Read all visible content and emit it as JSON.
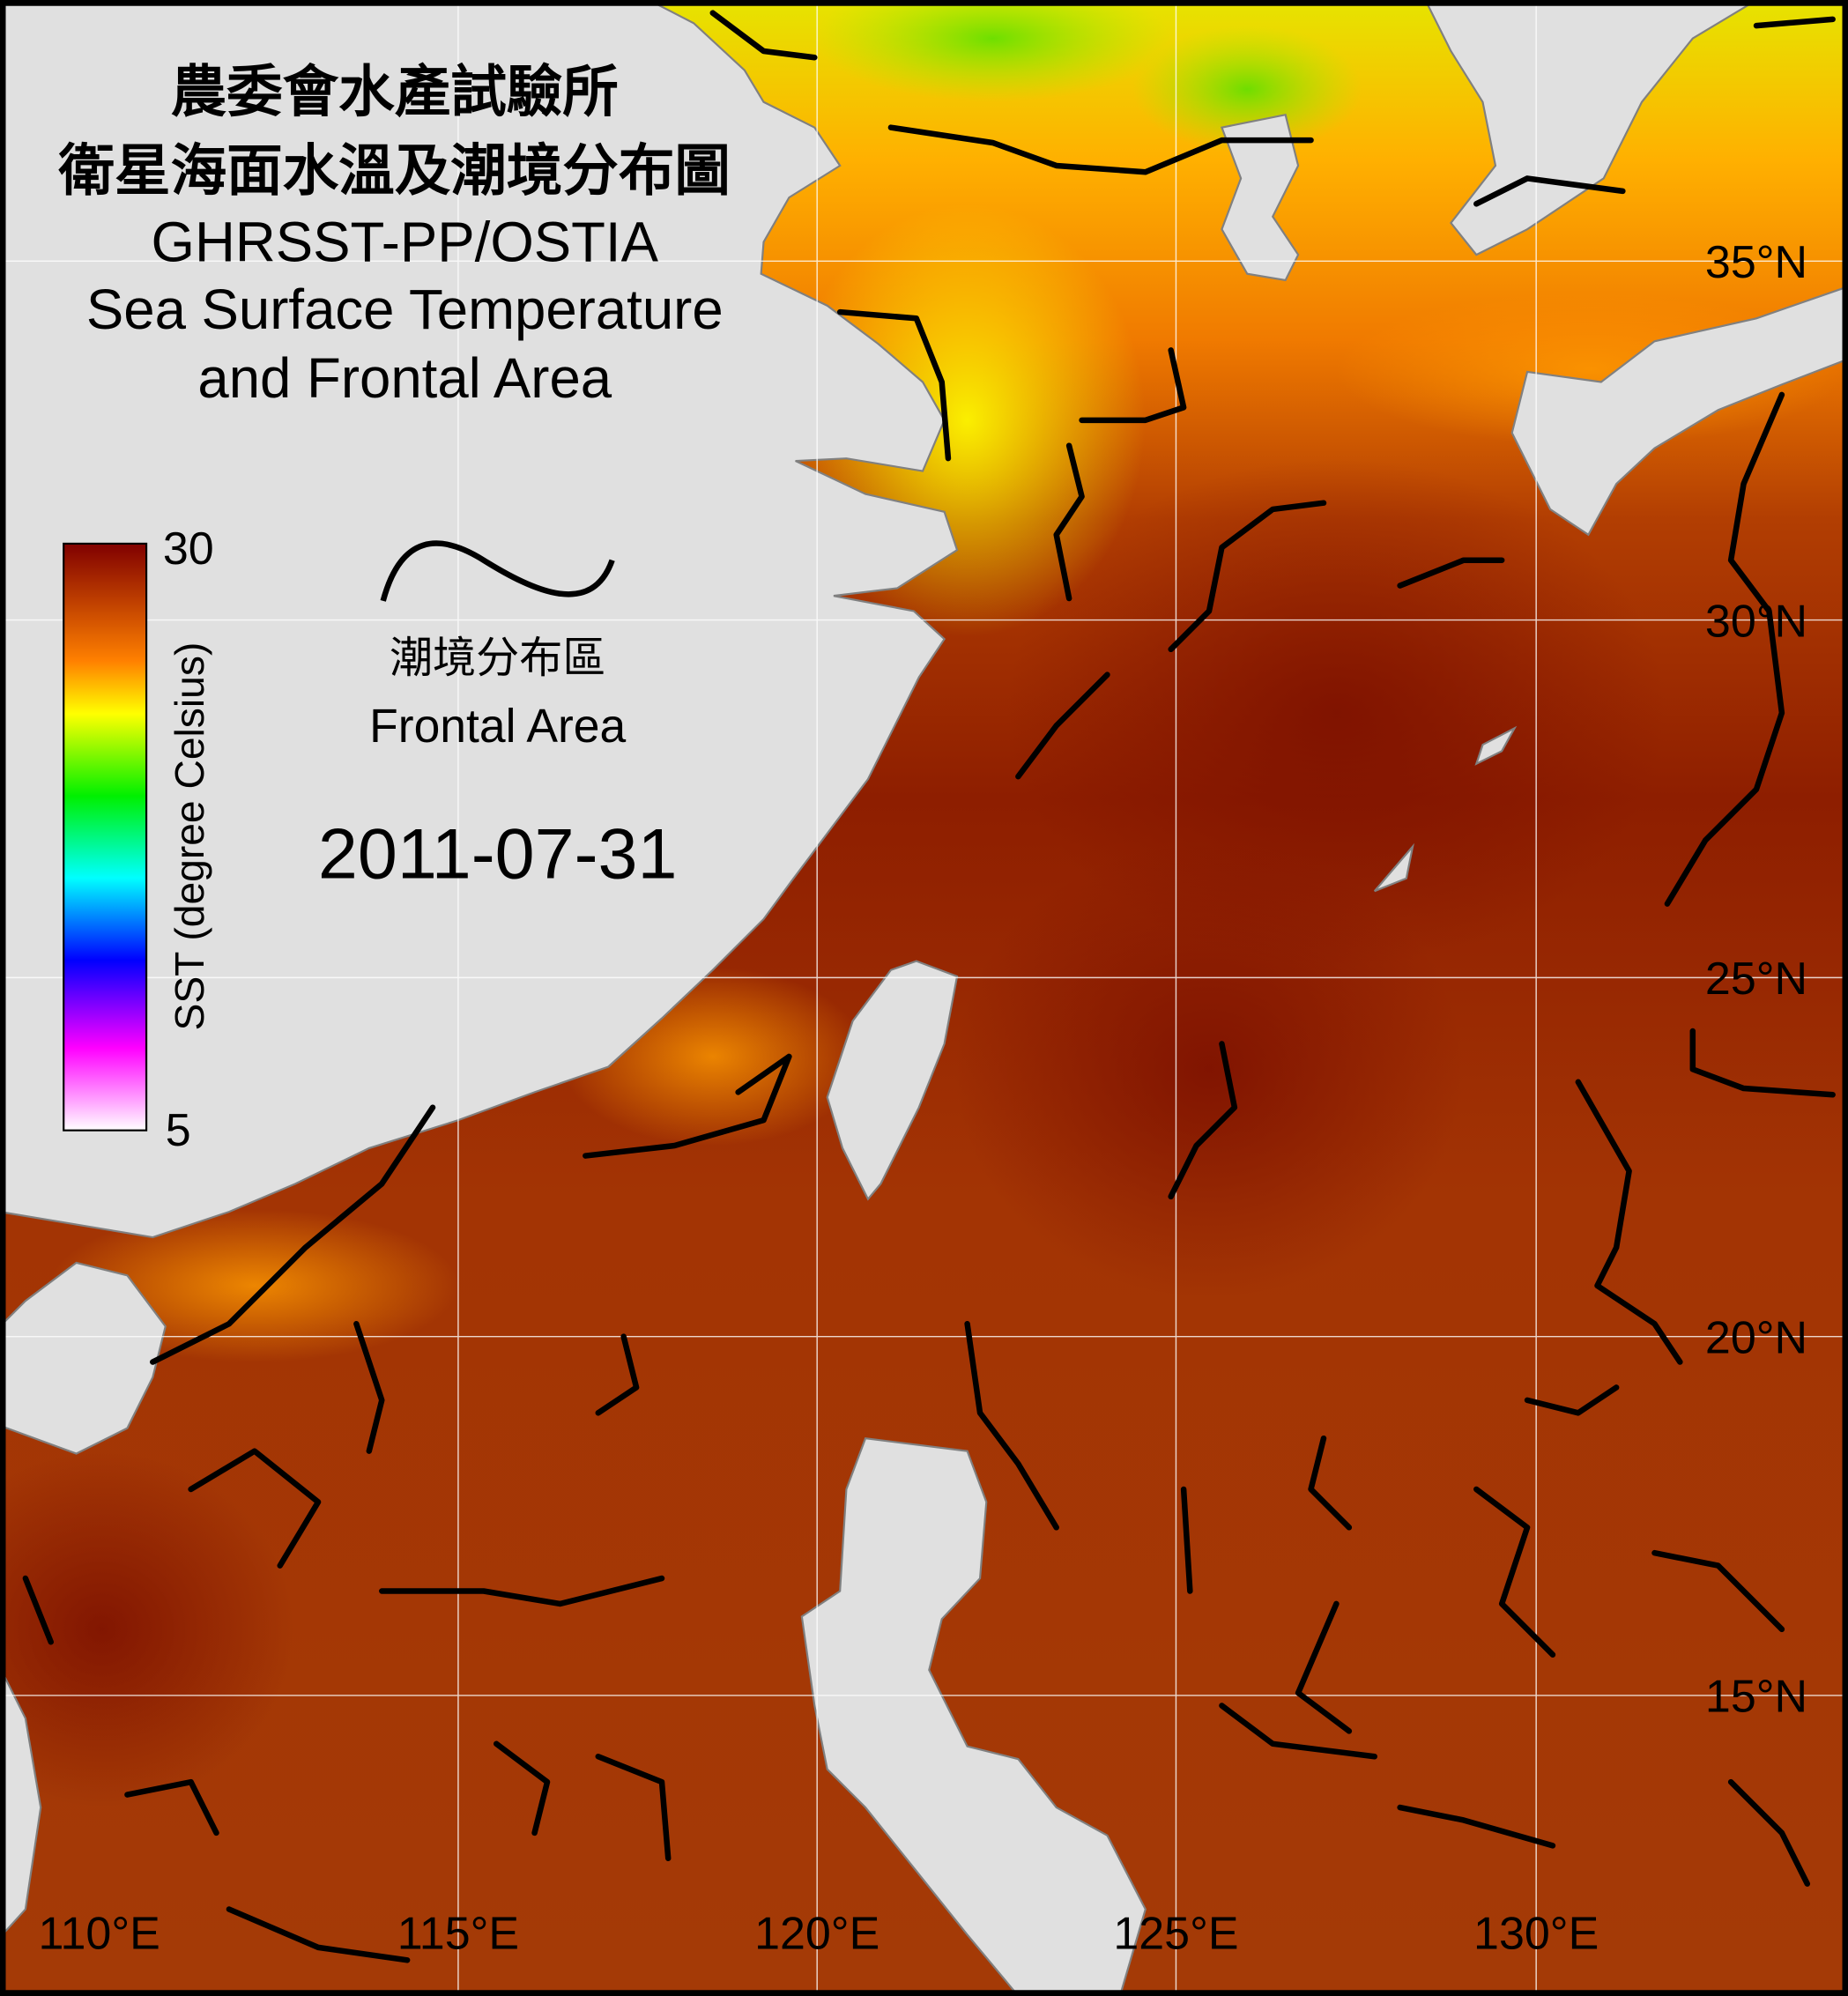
{
  "title": {
    "line1": "農委會水產試驗所",
    "line2": "衛星海面水溫及潮境分布圖",
    "line3": "GHRSST-PP/OSTIA",
    "line4": "Sea Surface Temperature",
    "line5": "and Frontal Area"
  },
  "colorbar": {
    "max_label": "30",
    "min_label": "5",
    "label": "SST (degree Celsius)",
    "min": 5,
    "max": 30,
    "color_stops": [
      "#800000",
      "#ff8000",
      "#ffff00",
      "#00ff00",
      "#00ffff",
      "#0000ff",
      "#ff00ff",
      "#ffffff"
    ]
  },
  "legend": {
    "symbol": "frontal-line",
    "label_zh": "潮境分布區",
    "label_en": "Frontal Area"
  },
  "date": "2011-07-31",
  "axes": {
    "longitude_labels": [
      "110°E",
      "115°E",
      "120°E",
      "125°E",
      "130°E"
    ],
    "latitude_labels": [
      "35°N",
      "30°N",
      "25°N",
      "20°N",
      "15°N"
    ]
  },
  "colors": {
    "land": "#e0e0e0",
    "coastline": "#808080",
    "front": "#000000",
    "grid": "#ffffff"
  }
}
